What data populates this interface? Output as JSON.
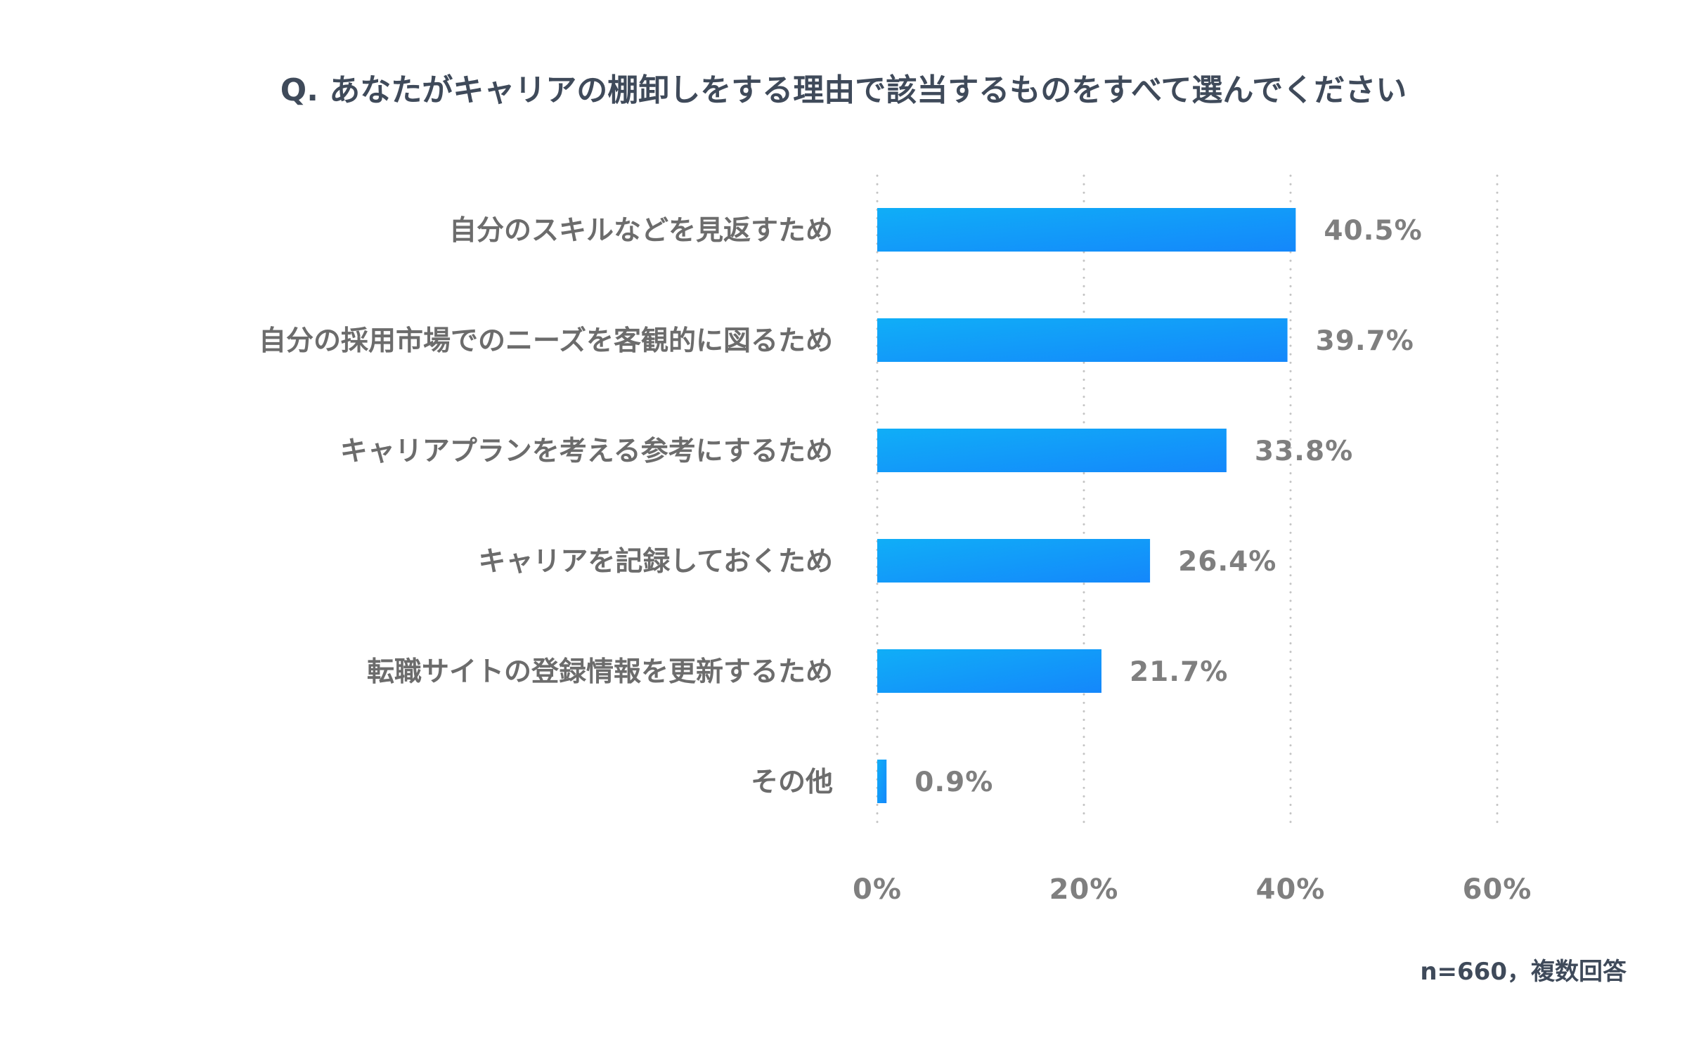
{
  "chart_data": {
    "type": "bar",
    "orientation": "horizontal",
    "title": "Q. あなたがキャリアの棚卸しをする理由で該当するものをすべて選んでください",
    "categories": [
      "自分のスキルなどを見返すため",
      "自分の採用市場でのニーズを客観的に図るため",
      "キャリアプランを考える参考にするため",
      "キャリアを記録しておくため",
      "転職サイトの登録情報を更新するため",
      "その他"
    ],
    "values": [
      40.5,
      39.7,
      33.8,
      26.4,
      21.7,
      0.9
    ],
    "value_labels": [
      "40.5%",
      "39.7%",
      "33.8%",
      "26.4%",
      "21.7%",
      "0.9%"
    ],
    "xlim": [
      0,
      60
    ],
    "ticks": [
      0,
      20,
      40,
      60
    ],
    "tick_labels": [
      "0%",
      "20%",
      "40%",
      "60%"
    ],
    "grid": true,
    "note": "n=660，複数回答",
    "bar_color_start": "#10aef7",
    "bar_color_end": "#1487fb"
  }
}
